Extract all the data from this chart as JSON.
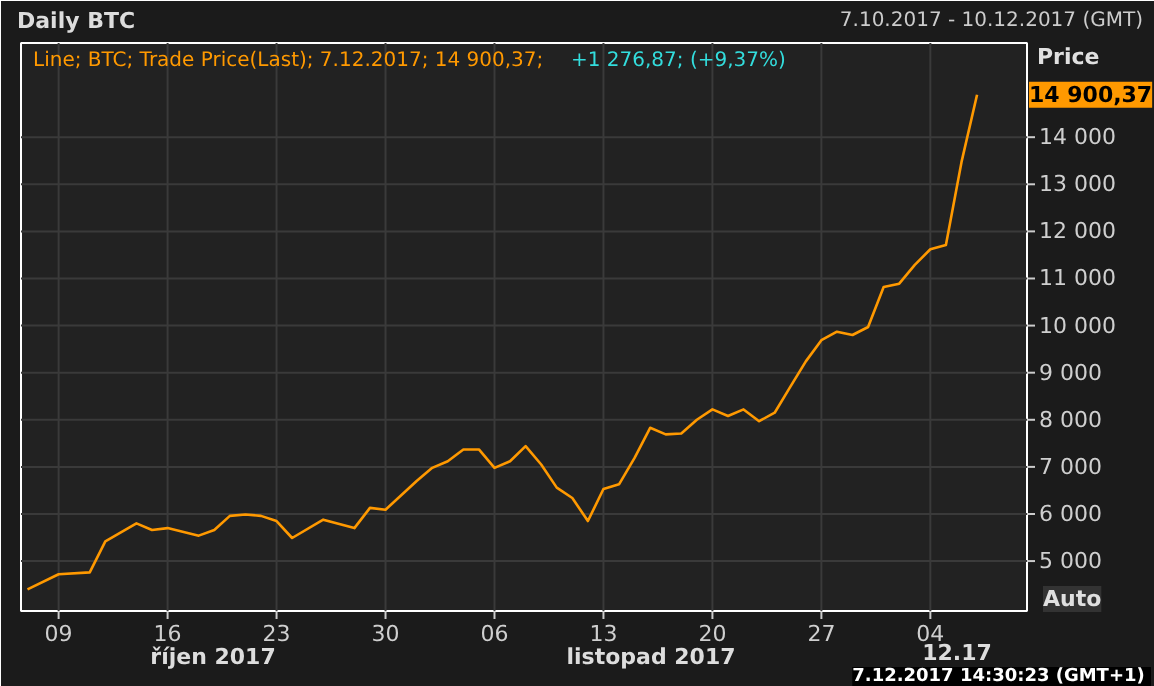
{
  "chart_data": {
    "type": "line",
    "title": "Daily BTC",
    "subtitle": "7.10.2017 - 10.12.2017 (GMT)",
    "x": [
      "2017-10-07",
      "2017-10-09",
      "2017-10-11",
      "2017-10-12",
      "2017-10-14",
      "2017-10-15",
      "2017-10-16",
      "2017-10-18",
      "2017-10-19",
      "2017-10-20",
      "2017-10-21",
      "2017-10-22",
      "2017-10-23",
      "2017-10-24",
      "2017-10-26",
      "2017-10-28",
      "2017-10-29",
      "2017-10-30",
      "2017-11-01",
      "2017-11-02",
      "2017-11-03",
      "2017-11-04",
      "2017-11-05",
      "2017-11-06",
      "2017-11-07",
      "2017-11-08",
      "2017-11-09",
      "2017-11-10",
      "2017-11-11",
      "2017-11-12",
      "2017-11-13",
      "2017-11-14",
      "2017-11-15",
      "2017-11-16",
      "2017-11-17",
      "2017-11-18",
      "2017-11-19",
      "2017-11-20",
      "2017-11-21",
      "2017-11-22",
      "2017-11-23",
      "2017-11-24",
      "2017-11-25",
      "2017-11-26",
      "2017-11-27",
      "2017-11-28",
      "2017-11-29",
      "2017-11-30",
      "2017-12-01",
      "2017-12-02",
      "2017-12-03",
      "2017-12-04",
      "2017-12-05",
      "2017-12-06",
      "2017-12-07"
    ],
    "series": [
      {
        "color": "#ff9900",
        "values": [
          4400,
          4720,
          4760,
          5420,
          5800,
          5660,
          5700,
          5540,
          5660,
          5960,
          5990,
          5960,
          5850,
          5490,
          5880,
          5700,
          6130,
          6090,
          6700,
          6980,
          7120,
          7370,
          7370,
          6980,
          7120,
          7440,
          7050,
          6560,
          6340,
          5850,
          6530,
          6630,
          7190,
          7830,
          7690,
          7710,
          8000,
          8220,
          8080,
          8220,
          7970,
          8150,
          8700,
          9240,
          9690,
          9870,
          9800,
          9970,
          10820,
          10890,
          11290,
          11620,
          11710,
          13470,
          14900.37
        ]
      }
    ],
    "xlim": [
      "2017-10-06T14:00",
      "2017-12-10T05:00"
    ],
    "xticks": [
      {
        "value": "2017-10-09",
        "label": "09"
      },
      {
        "value": "2017-10-16",
        "label": "16"
      },
      {
        "value": "2017-10-23",
        "label": "23"
      },
      {
        "value": "2017-10-30",
        "label": "30"
      },
      {
        "value": "2017-11-06",
        "label": "06"
      },
      {
        "value": "2017-11-13",
        "label": "13"
      },
      {
        "value": "2017-11-20",
        "label": "20"
      },
      {
        "value": "2017-11-27",
        "label": "27"
      },
      {
        "value": "2017-12-04",
        "label": "04"
      }
    ],
    "ylim": [
      3940,
      16000
    ],
    "yticks": [
      {
        "value": 5000,
        "label": "5 000"
      },
      {
        "value": 6000,
        "label": "6 000"
      },
      {
        "value": 7000,
        "label": "7 000"
      },
      {
        "value": 8000,
        "label": "8 000"
      },
      {
        "value": 9000,
        "label": "9 000"
      },
      {
        "value": 10000,
        "label": "10 000"
      },
      {
        "value": 11000,
        "label": "11 000"
      },
      {
        "value": 12000,
        "label": "12 000"
      },
      {
        "value": 13000,
        "label": "13 000"
      },
      {
        "value": 14000,
        "label": "14 000"
      }
    ],
    "grid": true,
    "marker": "none",
    "line_style": "solid",
    "annotations": [
      "Line; BTC; Trade Price(Last);  7.12.2017;  14 900,37;",
      "+1 276,87;  (+9,37%)",
      "14 900,37",
      "Price",
      "Auto",
      "říjen 2017",
      "listopad 2017",
      "12.17",
      "7.12.2017 14:30:23  (GMT+1)"
    ]
  }
}
